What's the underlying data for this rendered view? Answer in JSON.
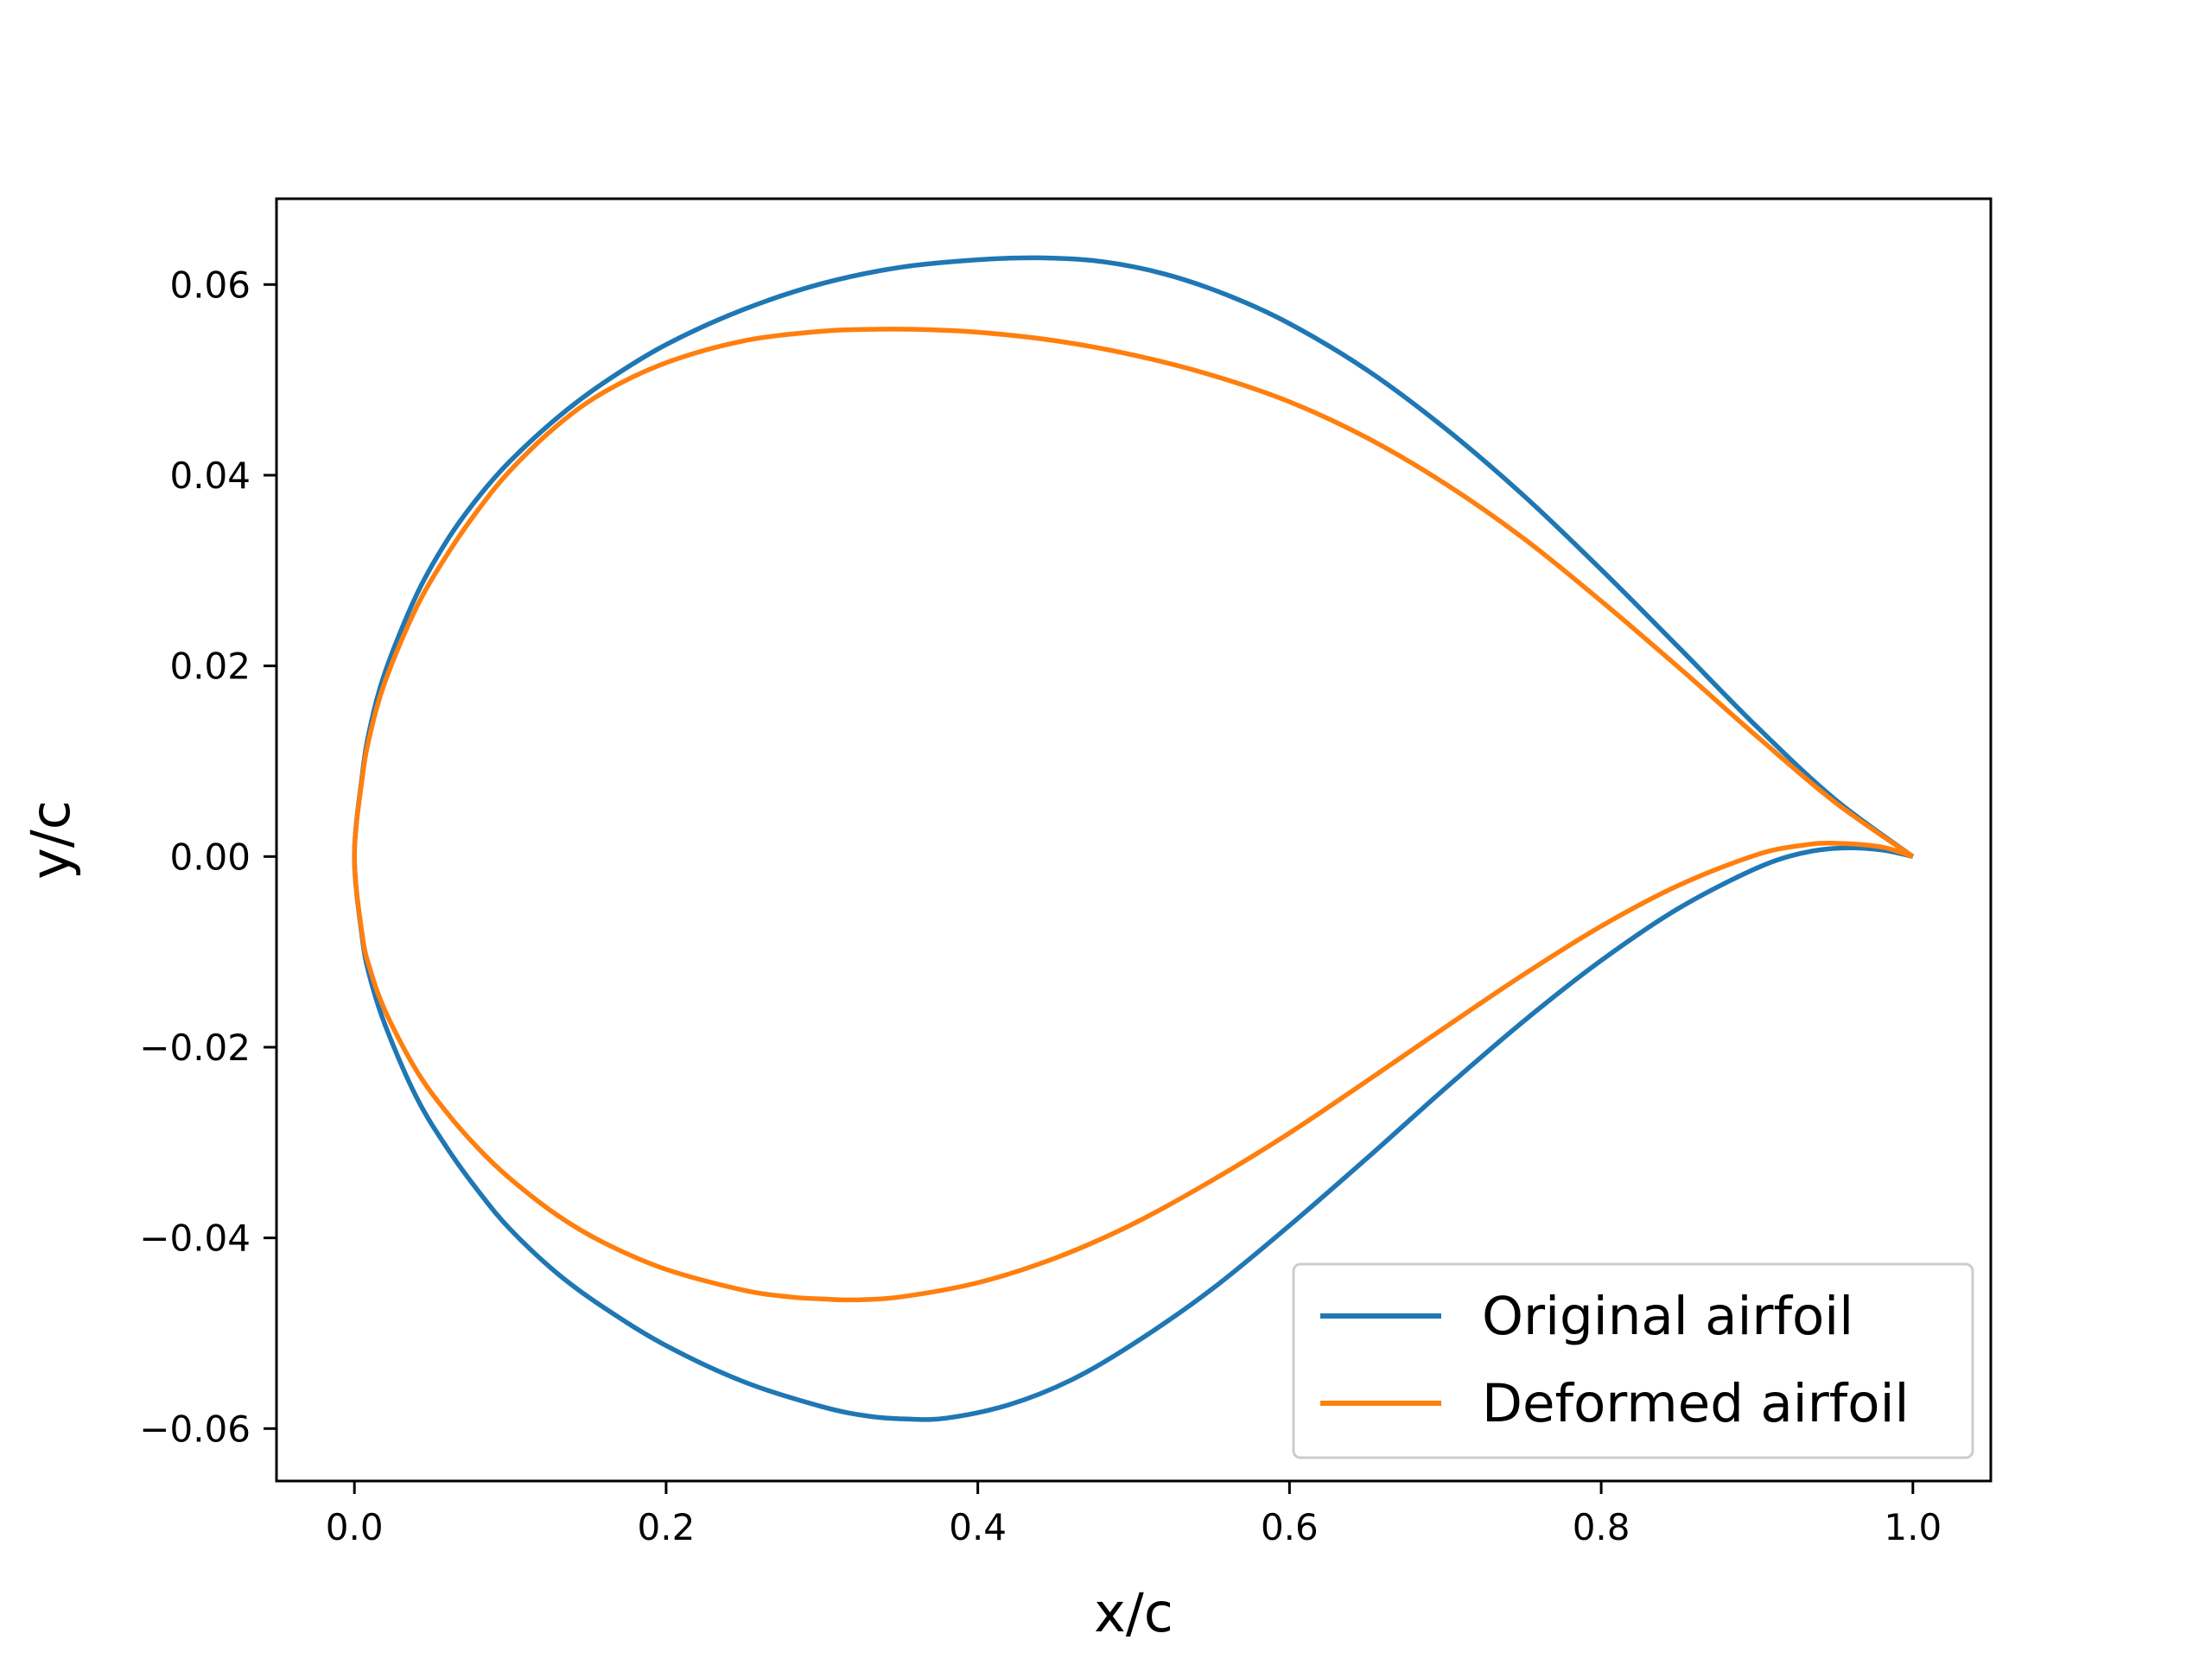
{
  "chart_data": {
    "type": "line",
    "title": "",
    "xlabel": "x/c",
    "ylabel": "y/c",
    "xlim": [
      -0.05,
      1.05
    ],
    "ylim": [
      -0.0655,
      0.069
    ],
    "xticks": [
      0.0,
      0.2,
      0.4,
      0.6,
      0.8,
      1.0
    ],
    "xtick_labels": [
      "0.0",
      "0.2",
      "0.4",
      "0.6",
      "0.8",
      "1.0"
    ],
    "yticks": [
      0.06,
      0.04,
      0.02,
      0.0,
      -0.02,
      -0.04,
      -0.06
    ],
    "ytick_labels": [
      "0.06",
      "0.04",
      "0.02",
      "0.00",
      "−0.02",
      "−0.04",
      "−0.06"
    ],
    "grid": false,
    "legend_position": "lower-right",
    "series": [
      {
        "name": "Original airfoil",
        "color": "#1f77b4",
        "upper": {
          "x": [
            0.0,
            0.005,
            0.01,
            0.02,
            0.04,
            0.06,
            0.08,
            0.1,
            0.13,
            0.16,
            0.2,
            0.25,
            0.3,
            0.35,
            0.4,
            0.44,
            0.48,
            0.52,
            0.56,
            0.6,
            0.65,
            0.7,
            0.75,
            0.8,
            0.85,
            0.9,
            0.95,
            1.0
          ],
          "y": [
            0.0,
            0.0085,
            0.0135,
            0.0195,
            0.0275,
            0.0333,
            0.0378,
            0.0415,
            0.046,
            0.0497,
            0.0537,
            0.0574,
            0.0601,
            0.0618,
            0.0626,
            0.0628,
            0.0624,
            0.0611,
            0.0589,
            0.0559,
            0.051,
            0.0449,
            0.0379,
            0.0301,
            0.0219,
            0.0136,
            0.006,
            0.0
          ]
        },
        "lower": {
          "x": [
            0.0,
            0.005,
            0.01,
            0.02,
            0.04,
            0.06,
            0.08,
            0.1,
            0.13,
            0.16,
            0.2,
            0.25,
            0.3,
            0.33,
            0.355,
            0.38,
            0.42,
            0.46,
            0.5,
            0.55,
            0.6,
            0.65,
            0.7,
            0.75,
            0.8,
            0.85,
            0.9,
            0.93,
            0.955,
            0.98,
            1.0
          ],
          "y": [
            0.0,
            -0.0085,
            -0.0127,
            -0.0178,
            -0.0253,
            -0.0307,
            -0.0352,
            -0.0391,
            -0.0437,
            -0.0473,
            -0.0513,
            -0.0551,
            -0.0577,
            -0.0587,
            -0.059,
            -0.0589,
            -0.0575,
            -0.0549,
            -0.0511,
            -0.0454,
            -0.0387,
            -0.0316,
            -0.0243,
            -0.0173,
            -0.0109,
            -0.0054,
            -0.0012,
            0.0004,
            0.0009,
            0.0007,
            0.0
          ]
        }
      },
      {
        "name": "Deformed airfoil",
        "color": "#ff7f0e",
        "upper": {
          "x": [
            0.0,
            0.005,
            0.01,
            0.02,
            0.04,
            0.06,
            0.08,
            0.1,
            0.13,
            0.16,
            0.2,
            0.25,
            0.3,
            0.33,
            0.36,
            0.4,
            0.45,
            0.5,
            0.55,
            0.6,
            0.65,
            0.7,
            0.75,
            0.8,
            0.85,
            0.9,
            0.95,
            1.0
          ],
          "y": [
            0.0,
            0.0082,
            0.0128,
            0.0185,
            0.0262,
            0.0318,
            0.0365,
            0.0405,
            0.0452,
            0.0487,
            0.0518,
            0.0541,
            0.0551,
            0.0553,
            0.0553,
            0.055,
            0.0541,
            0.0526,
            0.0505,
            0.0477,
            0.0439,
            0.0391,
            0.0334,
            0.0268,
            0.0198,
            0.0126,
            0.0057,
            0.0
          ]
        },
        "lower": {
          "x": [
            0.0,
            0.005,
            0.01,
            0.02,
            0.04,
            0.06,
            0.08,
            0.1,
            0.13,
            0.16,
            0.2,
            0.25,
            0.28,
            0.3,
            0.32,
            0.35,
            0.4,
            0.45,
            0.5,
            0.55,
            0.6,
            0.65,
            0.7,
            0.75,
            0.8,
            0.85,
            0.9,
            0.93,
            0.95,
            0.98,
            1.0
          ],
          "y": [
            0.0,
            -0.0082,
            -0.0118,
            -0.0163,
            -0.0225,
            -0.027,
            -0.0307,
            -0.0338,
            -0.0376,
            -0.0405,
            -0.0433,
            -0.0455,
            -0.0462,
            -0.0464,
            -0.0465,
            -0.0462,
            -0.0447,
            -0.0421,
            -0.0385,
            -0.034,
            -0.029,
            -0.0235,
            -0.0179,
            -0.0124,
            -0.0073,
            -0.003,
            0.0002,
            0.0012,
            0.0014,
            0.001,
            0.0
          ]
        }
      }
    ]
  }
}
